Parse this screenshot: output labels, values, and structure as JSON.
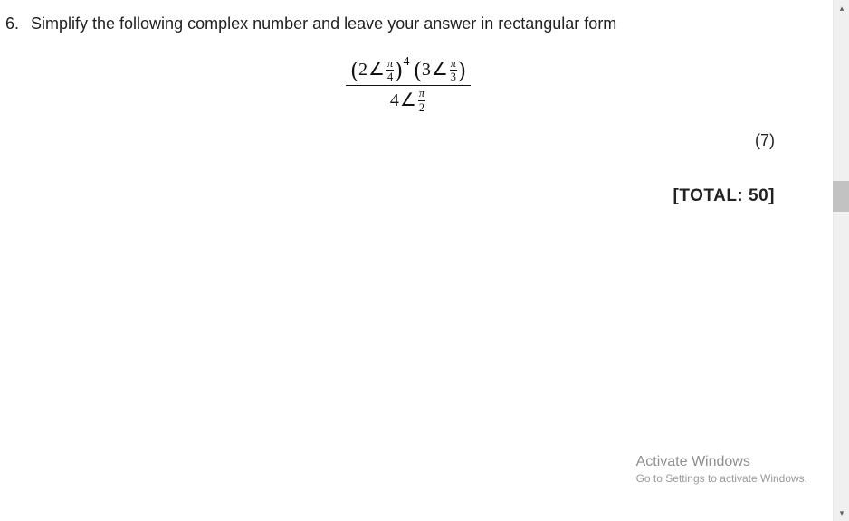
{
  "question": {
    "number": "6.",
    "text": "Simplify the following complex number and leave your answer in rectangular form",
    "marks": "(7)"
  },
  "formula": {
    "numerator": {
      "term1": {
        "open": "(",
        "mag": "2",
        "angle": "∠",
        "frac_num": "π",
        "frac_den": "4",
        "close": ")",
        "exp": "4"
      },
      "term2": {
        "open": "(",
        "mag": "3",
        "angle": "∠",
        "frac_num": "π",
        "frac_den": "3",
        "close": ")"
      }
    },
    "denominator": {
      "mag": "4",
      "angle": "∠",
      "frac_num": "π",
      "frac_den": "2"
    }
  },
  "total": {
    "label": "[TOTAL:",
    "value": "50]"
  },
  "watermark": {
    "title": "Activate Windows",
    "subtitle": "Go to Settings to activate Windows."
  },
  "colors": {
    "text": "#222222",
    "watermark": "#8f8f8f",
    "scroll_track": "#f0f0f0",
    "scroll_thumb": "#c2c2c2",
    "background": "#ffffff"
  }
}
